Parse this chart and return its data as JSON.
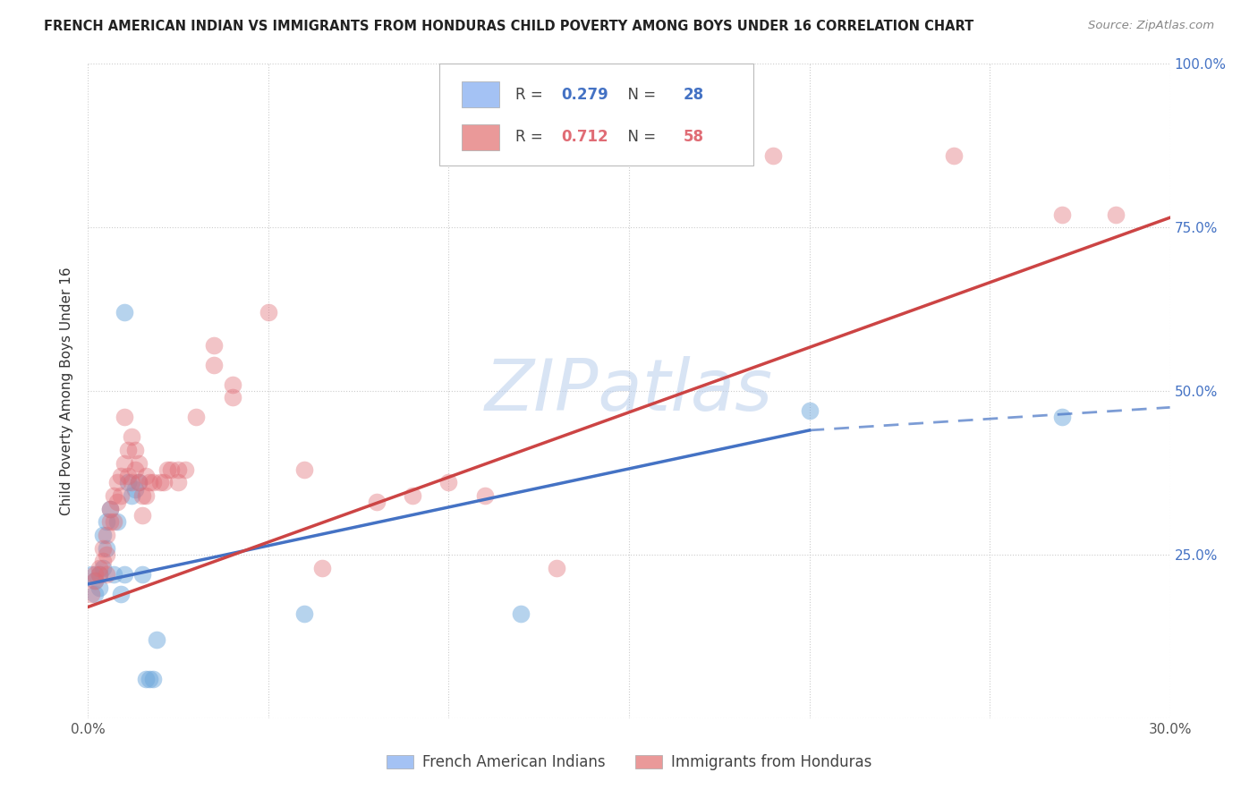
{
  "title": "FRENCH AMERICAN INDIAN VS IMMIGRANTS FROM HONDURAS CHILD POVERTY AMONG BOYS UNDER 16 CORRELATION CHART",
  "source": "Source: ZipAtlas.com",
  "ylabel": "Child Poverty Among Boys Under 16",
  "xlim": [
    0.0,
    0.3
  ],
  "ylim": [
    0.0,
    1.0
  ],
  "xticks": [
    0.0,
    0.05,
    0.1,
    0.15,
    0.2,
    0.25,
    0.3
  ],
  "xticklabels": [
    "0.0%",
    "",
    "",
    "",
    "",
    "",
    "30.0%"
  ],
  "yticks": [
    0.0,
    0.25,
    0.5,
    0.75,
    1.0
  ],
  "right_yticklabels": [
    "",
    "25.0%",
    "50.0%",
    "75.0%",
    "100.0%"
  ],
  "watermark": "ZIPatlas",
  "blue_r": "0.279",
  "blue_n": "28",
  "pink_r": "0.712",
  "pink_n": "58",
  "blue_scatter": [
    [
      0.001,
      0.22
    ],
    [
      0.002,
      0.21
    ],
    [
      0.002,
      0.19
    ],
    [
      0.003,
      0.22
    ],
    [
      0.003,
      0.2
    ],
    [
      0.004,
      0.23
    ],
    [
      0.004,
      0.28
    ],
    [
      0.005,
      0.3
    ],
    [
      0.005,
      0.26
    ],
    [
      0.006,
      0.32
    ],
    [
      0.007,
      0.22
    ],
    [
      0.008,
      0.3
    ],
    [
      0.009,
      0.19
    ],
    [
      0.01,
      0.22
    ],
    [
      0.01,
      0.62
    ],
    [
      0.011,
      0.36
    ],
    [
      0.012,
      0.34
    ],
    [
      0.013,
      0.35
    ],
    [
      0.014,
      0.36
    ],
    [
      0.015,
      0.22
    ],
    [
      0.016,
      0.06
    ],
    [
      0.017,
      0.06
    ],
    [
      0.018,
      0.06
    ],
    [
      0.019,
      0.12
    ],
    [
      0.06,
      0.16
    ],
    [
      0.12,
      0.16
    ],
    [
      0.2,
      0.47
    ],
    [
      0.27,
      0.46
    ]
  ],
  "pink_scatter": [
    [
      0.001,
      0.19
    ],
    [
      0.002,
      0.21
    ],
    [
      0.002,
      0.22
    ],
    [
      0.003,
      0.23
    ],
    [
      0.003,
      0.22
    ],
    [
      0.004,
      0.26
    ],
    [
      0.004,
      0.24
    ],
    [
      0.005,
      0.28
    ],
    [
      0.005,
      0.25
    ],
    [
      0.005,
      0.22
    ],
    [
      0.006,
      0.3
    ],
    [
      0.006,
      0.32
    ],
    [
      0.007,
      0.34
    ],
    [
      0.007,
      0.3
    ],
    [
      0.008,
      0.36
    ],
    [
      0.008,
      0.33
    ],
    [
      0.009,
      0.34
    ],
    [
      0.009,
      0.37
    ],
    [
      0.01,
      0.46
    ],
    [
      0.01,
      0.39
    ],
    [
      0.011,
      0.41
    ],
    [
      0.011,
      0.37
    ],
    [
      0.012,
      0.43
    ],
    [
      0.012,
      0.36
    ],
    [
      0.013,
      0.41
    ],
    [
      0.013,
      0.38
    ],
    [
      0.014,
      0.36
    ],
    [
      0.014,
      0.39
    ],
    [
      0.015,
      0.34
    ],
    [
      0.015,
      0.31
    ],
    [
      0.016,
      0.34
    ],
    [
      0.016,
      0.37
    ],
    [
      0.017,
      0.36
    ],
    [
      0.018,
      0.36
    ],
    [
      0.02,
      0.36
    ],
    [
      0.021,
      0.36
    ],
    [
      0.022,
      0.38
    ],
    [
      0.023,
      0.38
    ],
    [
      0.025,
      0.36
    ],
    [
      0.025,
      0.38
    ],
    [
      0.027,
      0.38
    ],
    [
      0.03,
      0.46
    ],
    [
      0.035,
      0.54
    ],
    [
      0.035,
      0.57
    ],
    [
      0.04,
      0.49
    ],
    [
      0.04,
      0.51
    ],
    [
      0.05,
      0.62
    ],
    [
      0.06,
      0.38
    ],
    [
      0.065,
      0.23
    ],
    [
      0.08,
      0.33
    ],
    [
      0.09,
      0.34
    ],
    [
      0.1,
      0.36
    ],
    [
      0.11,
      0.34
    ],
    [
      0.13,
      0.23
    ],
    [
      0.19,
      0.86
    ],
    [
      0.24,
      0.86
    ],
    [
      0.27,
      0.77
    ],
    [
      0.285,
      0.77
    ]
  ],
  "blue_line": {
    "x0": 0.0,
    "x1": 0.2,
    "x2": 0.3,
    "y_at_0": 0.205,
    "y_at_20": 0.44,
    "y_at_30": 0.475
  },
  "pink_line": {
    "x0": 0.0,
    "x1": 0.3,
    "y_at_0": 0.17,
    "y_at_30": 0.765
  },
  "blue_color": "#a4c2f4",
  "blue_color_dark": "#6fa8dc",
  "pink_color": "#ea9999",
  "pink_color_dark": "#e06c75",
  "blue_line_color": "#4472c4",
  "pink_line_color": "#cc4444",
  "background_color": "#ffffff",
  "grid_color": "#cccccc",
  "legend_label_blue": "French American Indians",
  "legend_label_pink": "Immigrants from Honduras"
}
